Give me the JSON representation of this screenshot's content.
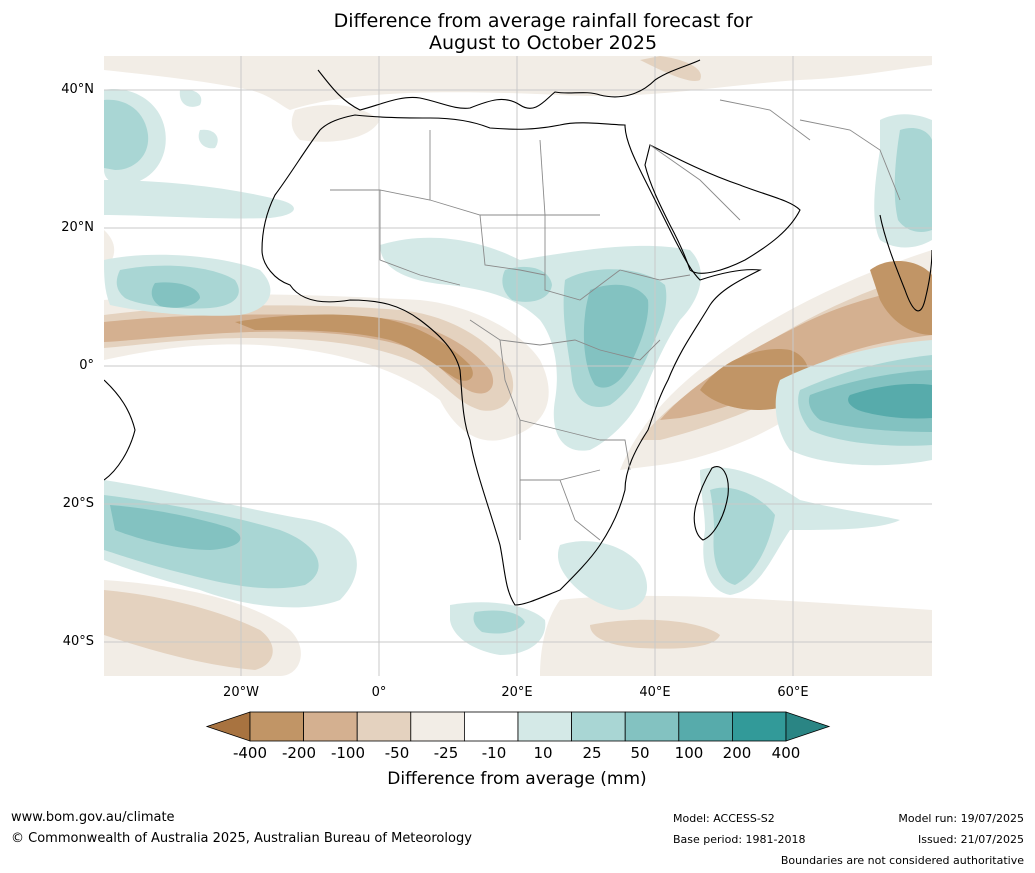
{
  "title": {
    "line1": "Difference from average rainfall forecast for",
    "line2": "August to October 2025"
  },
  "axes": {
    "lat_labels": [
      "40°N",
      "20°N",
      "0°",
      "20°S",
      "40°S"
    ],
    "lon_labels": [
      "20°W",
      "0°",
      "20°E",
      "40°E",
      "60°E"
    ]
  },
  "colorbar": {
    "title": "Difference from average (mm)",
    "ticks": [
      "-400",
      "-200",
      "-100",
      "-50",
      "-25",
      "-10",
      "10",
      "25",
      "50",
      "100",
      "200",
      "400"
    ],
    "colors": [
      "#a87340",
      "#c19566",
      "#d4b090",
      "#e4d2bf",
      "#f2ede6",
      "#ffffff",
      "#d4e9e7",
      "#a9d6d4",
      "#83c2c1",
      "#57abab",
      "#329a99",
      "#2a8584"
    ]
  },
  "footer": {
    "website": "www.bom.gov.au/climate",
    "copyright": "© Commonwealth of Australia 2025, Australian Bureau of Meteorology",
    "model": "Model: ACCESS-S2",
    "base_period": "Base period: 1981-2018",
    "model_run": "Model run: 19/07/2025",
    "issued": "Issued: 21/07/2025",
    "disclaimer": "Boundaries are not considered authoritative"
  }
}
